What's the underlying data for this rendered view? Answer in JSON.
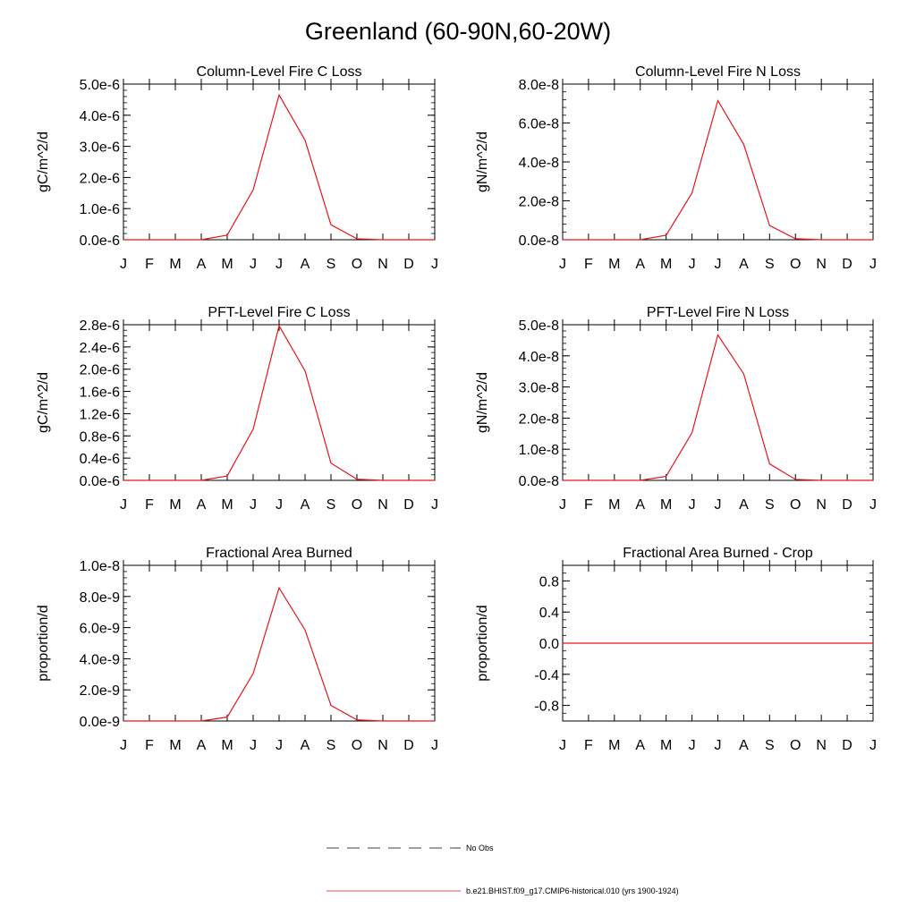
{
  "page": {
    "title": "Greenland (60-90N,60-20W)"
  },
  "colors": {
    "series_line": "#e8141c",
    "axis": "#000000",
    "obs_line": "#000000"
  },
  "legend": {
    "items": [
      {
        "label": "No Obs",
        "style": "dashed",
        "color": "#000000"
      },
      {
        "label": "b.e21.BHIST.f09_g17.CMIP6-historical.010 (yrs 1900-1924)",
        "style": "solid",
        "color": "#e8141c"
      }
    ]
  },
  "chart_data": [
    {
      "type": "line",
      "title": "Column-Level Fire C Loss",
      "ylabel": "gC/m^2/d",
      "xlabel": "",
      "categories": [
        "J",
        "F",
        "M",
        "A",
        "M",
        "J",
        "J",
        "A",
        "S",
        "O",
        "N",
        "D",
        "J"
      ],
      "ylim": [
        0,
        5e-06
      ],
      "yticks": [
        0,
        1e-06,
        2e-06,
        3e-06,
        4e-06,
        5e-06
      ],
      "ytick_labels": [
        "0.0e-6",
        "1.0e-6",
        "2.0e-6",
        "3.0e-6",
        "4.0e-6",
        "5.0e-6"
      ],
      "yminor": 5,
      "grid": false,
      "series": [
        {
          "values": [
            0,
            0,
            0,
            0,
            1.5e-07,
            1.6e-06,
            4.65e-06,
            3.2e-06,
            4.8e-07,
            3e-08,
            0,
            0,
            0
          ]
        }
      ]
    },
    {
      "type": "line",
      "title": "Column-Level Fire N Loss",
      "ylabel": "gN/m^2/d",
      "xlabel": "",
      "categories": [
        "J",
        "F",
        "M",
        "A",
        "M",
        "J",
        "J",
        "A",
        "S",
        "O",
        "N",
        "D",
        "J"
      ],
      "ylim": [
        0,
        8e-08
      ],
      "yticks": [
        0,
        2e-08,
        4e-08,
        6e-08,
        8e-08
      ],
      "ytick_labels": [
        "0.0e-8",
        "2.0e-8",
        "4.0e-8",
        "6.0e-8",
        "8.0e-8"
      ],
      "yminor": 5,
      "grid": false,
      "series": [
        {
          "values": [
            0,
            0,
            0,
            0,
            2.3e-09,
            2.4e-08,
            7.15e-08,
            4.9e-08,
            7.3e-09,
            5e-10,
            0,
            0,
            0
          ]
        }
      ]
    },
    {
      "type": "line",
      "title": "PFT-Level Fire C Loss",
      "ylabel": "gC/m^2/d",
      "xlabel": "",
      "categories": [
        "J",
        "F",
        "M",
        "A",
        "M",
        "J",
        "J",
        "A",
        "S",
        "O",
        "N",
        "D",
        "J"
      ],
      "ylim": [
        0,
        2.8e-06
      ],
      "yticks": [
        0,
        4e-07,
        8e-07,
        1.2e-06,
        1.6e-06,
        2e-06,
        2.4e-06,
        2.8e-06
      ],
      "ytick_labels": [
        "0.0e-6",
        "0.4e-6",
        "0.8e-6",
        "1.2e-6",
        "1.6e-6",
        "2.0e-6",
        "2.4e-6",
        "2.8e-6"
      ],
      "yminor": 4,
      "grid": false,
      "series": [
        {
          "values": [
            0,
            0,
            0,
            0,
            8e-08,
            9.2e-07,
            2.78e-06,
            1.97e-06,
            3.1e-07,
            2e-08,
            0,
            0,
            0
          ]
        }
      ]
    },
    {
      "type": "line",
      "title": "PFT-Level Fire N Loss",
      "ylabel": "gN/m^2/d",
      "xlabel": "",
      "categories": [
        "J",
        "F",
        "M",
        "A",
        "M",
        "J",
        "J",
        "A",
        "S",
        "O",
        "N",
        "D",
        "J"
      ],
      "ylim": [
        0,
        5e-08
      ],
      "yticks": [
        0,
        1e-08,
        2e-08,
        3e-08,
        4e-08,
        5e-08
      ],
      "ytick_labels": [
        "0.0e-8",
        "1.0e-8",
        "2.0e-8",
        "3.0e-8",
        "4.0e-8",
        "5.0e-8"
      ],
      "yminor": 5,
      "grid": false,
      "series": [
        {
          "values": [
            0,
            0,
            0,
            0,
            1.3e-09,
            1.53e-08,
            4.67e-08,
            3.42e-08,
            5.3e-09,
            3e-10,
            0,
            0,
            0
          ]
        }
      ]
    },
    {
      "type": "line",
      "title": "Fractional Area Burned",
      "ylabel": "proportion/d",
      "xlabel": "",
      "categories": [
        "J",
        "F",
        "M",
        "A",
        "M",
        "J",
        "J",
        "A",
        "S",
        "O",
        "N",
        "D",
        "J"
      ],
      "ylim": [
        0,
        1e-08
      ],
      "yticks": [
        0,
        2e-09,
        4e-09,
        6e-09,
        8e-09,
        1e-08
      ],
      "ytick_labels": [
        "0.0e-9",
        "2.0e-9",
        "4.0e-9",
        "6.0e-9",
        "8.0e-9",
        "1.0e-8"
      ],
      "yminor": 5,
      "grid": false,
      "series": [
        {
          "values": [
            0,
            0,
            0,
            0,
            2.5e-10,
            3.05e-09,
            8.55e-09,
            5.85e-09,
            1e-09,
            7e-11,
            0,
            0,
            0
          ]
        }
      ]
    },
    {
      "type": "line",
      "title": "Fractional Area Burned - Crop",
      "ylabel": "proportion/d",
      "xlabel": "",
      "categories": [
        "J",
        "F",
        "M",
        "A",
        "M",
        "J",
        "J",
        "A",
        "S",
        "O",
        "N",
        "D",
        "J"
      ],
      "ylim": [
        -1.0,
        1.0
      ],
      "yticks": [
        -0.8,
        -0.4,
        0.0,
        0.4,
        0.8
      ],
      "ytick_labels": [
        "-0.8",
        "-0.4",
        "0.0",
        "0.4",
        "0.8"
      ],
      "yminor": 4,
      "grid": false,
      "series": [
        {
          "values": [
            0,
            0,
            0,
            0,
            0,
            0,
            0,
            0,
            0,
            0,
            0,
            0,
            0
          ]
        }
      ]
    }
  ]
}
